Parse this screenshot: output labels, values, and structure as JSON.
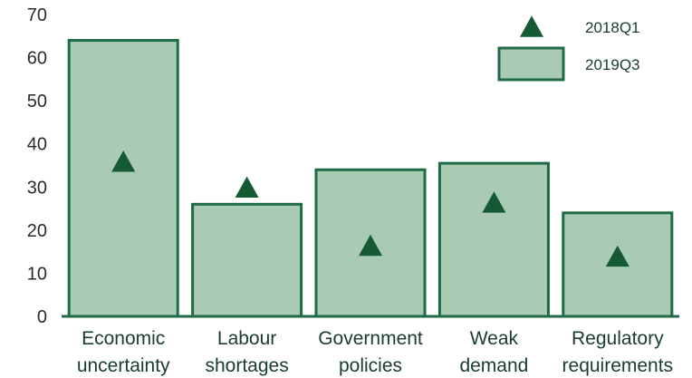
{
  "chart_data": {
    "type": "bar",
    "categories": [
      [
        "Economic",
        "uncertainty"
      ],
      [
        "Labour",
        "shortages"
      ],
      [
        "Government",
        "policies"
      ],
      [
        "Weak",
        "demand"
      ],
      [
        "Regulatory",
        "requirements"
      ]
    ],
    "series": [
      {
        "name": "2019Q3",
        "mark": "bar",
        "values": [
          64,
          26,
          34,
          35.5,
          24
        ]
      },
      {
        "name": "2018Q1",
        "mark": "triangle",
        "values": [
          36,
          30,
          16.5,
          26.5,
          14
        ]
      }
    ],
    "ylim": [
      0,
      70
    ],
    "yticks": [
      0,
      10,
      20,
      30,
      40,
      50,
      60,
      70
    ],
    "title": "",
    "xlabel": "",
    "ylabel": "",
    "grid": false,
    "legend_position": "top-right",
    "colors": {
      "bar_fill": "#a9cbb5",
      "bar_stroke": "#1f6b45",
      "marker": "#155a35",
      "axis": "#1f6b45",
      "text": "#1a3d2b"
    }
  }
}
